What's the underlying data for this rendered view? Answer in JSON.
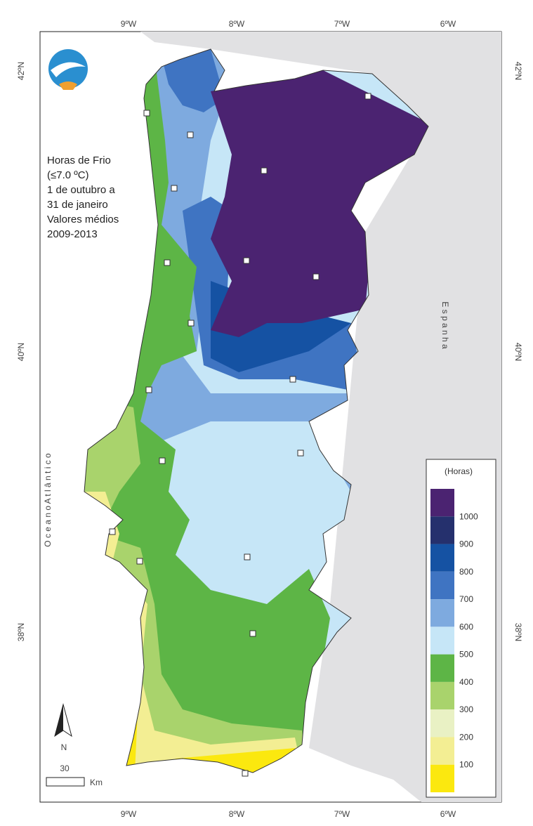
{
  "title_lines": [
    "Horas de Frio",
    "(≤7.0 ºC)",
    "1 de outubro a",
    "31 de janeiro",
    "Valores médios",
    "2009-2013"
  ],
  "lon_labels": [
    "9ºW",
    "8ºW",
    "7ºW",
    "6ºW"
  ],
  "lat_labels": [
    "42ºN",
    "40ºN",
    "38ºN"
  ],
  "labels": {
    "spain": "E s p a n h a",
    "ocean": "O c e a n o   A t l â n t i c o",
    "north": "N",
    "scale": "30",
    "scale_unit": "Km"
  },
  "legend": {
    "title": "(Horas)",
    "colors": [
      "#4b2371",
      "#25306d",
      "#1552a3",
      "#3f74c2",
      "#7eaadf",
      "#c6e6f7",
      "#5db546",
      "#a9d36c",
      "#e9f1c4",
      "#f3ee93",
      "#fbe80f"
    ],
    "labels": [
      "1000",
      "900",
      "800",
      "700",
      "600",
      "500",
      "400",
      "300",
      "200",
      "100"
    ]
  }
}
